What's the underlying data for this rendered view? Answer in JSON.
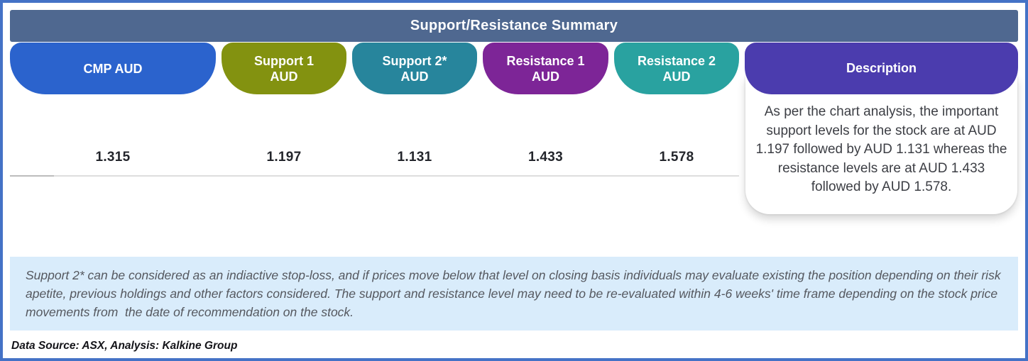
{
  "title": "Support/Resistance Summary",
  "columns": [
    {
      "line1": "CMP AUD",
      "line2": "",
      "value": "1.315",
      "color": "#2b63cd"
    },
    {
      "line1": "Support 1",
      "line2": "AUD",
      "value": "1.197",
      "color": "#839210"
    },
    {
      "line1": "Support 2*",
      "line2": "AUD",
      "value": "1.131",
      "color": "#27859c"
    },
    {
      "line1": "Resistance 1",
      "line2": "AUD",
      "value": "1.433",
      "color": "#7d2597"
    },
    {
      "line1": "Resistance 2",
      "line2": "AUD",
      "value": "1.578",
      "color": "#29a2a0"
    }
  ],
  "description": {
    "label": "Description",
    "color": "#4b3cae",
    "text": "As per the chart analysis, the important support levels for the stock are at AUD 1.197 followed by AUD 1.131 whereas the resistance levels are at AUD 1.433 followed by AUD 1.578."
  },
  "footnote": "Support 2* can be considered as an indiactive stop-loss, and if prices move below that level on closing basis individuals may evaluate existing the position depending on their risk apetite, previous holdings and other factors considered. The support and resistance level may need to be re-evaluated within 4-6 weeks' time frame depending on the stock price movements from  the date of recommendation on the stock.",
  "data_source": "Data Source: ASX, Analysis: Kalkine Group",
  "colors": {
    "outer_border": "#4472c6",
    "title_bar": "#4f6890",
    "footnote_bg": "#d9ecfb"
  },
  "chart_data": {
    "type": "table",
    "columns": [
      "CMP AUD",
      "Support 1 AUD",
      "Support 2* AUD",
      "Resistance 1 AUD",
      "Resistance 2 AUD"
    ],
    "values": [
      1.315,
      1.197,
      1.131,
      1.433,
      1.578
    ],
    "title": "Support/Resistance Summary"
  }
}
